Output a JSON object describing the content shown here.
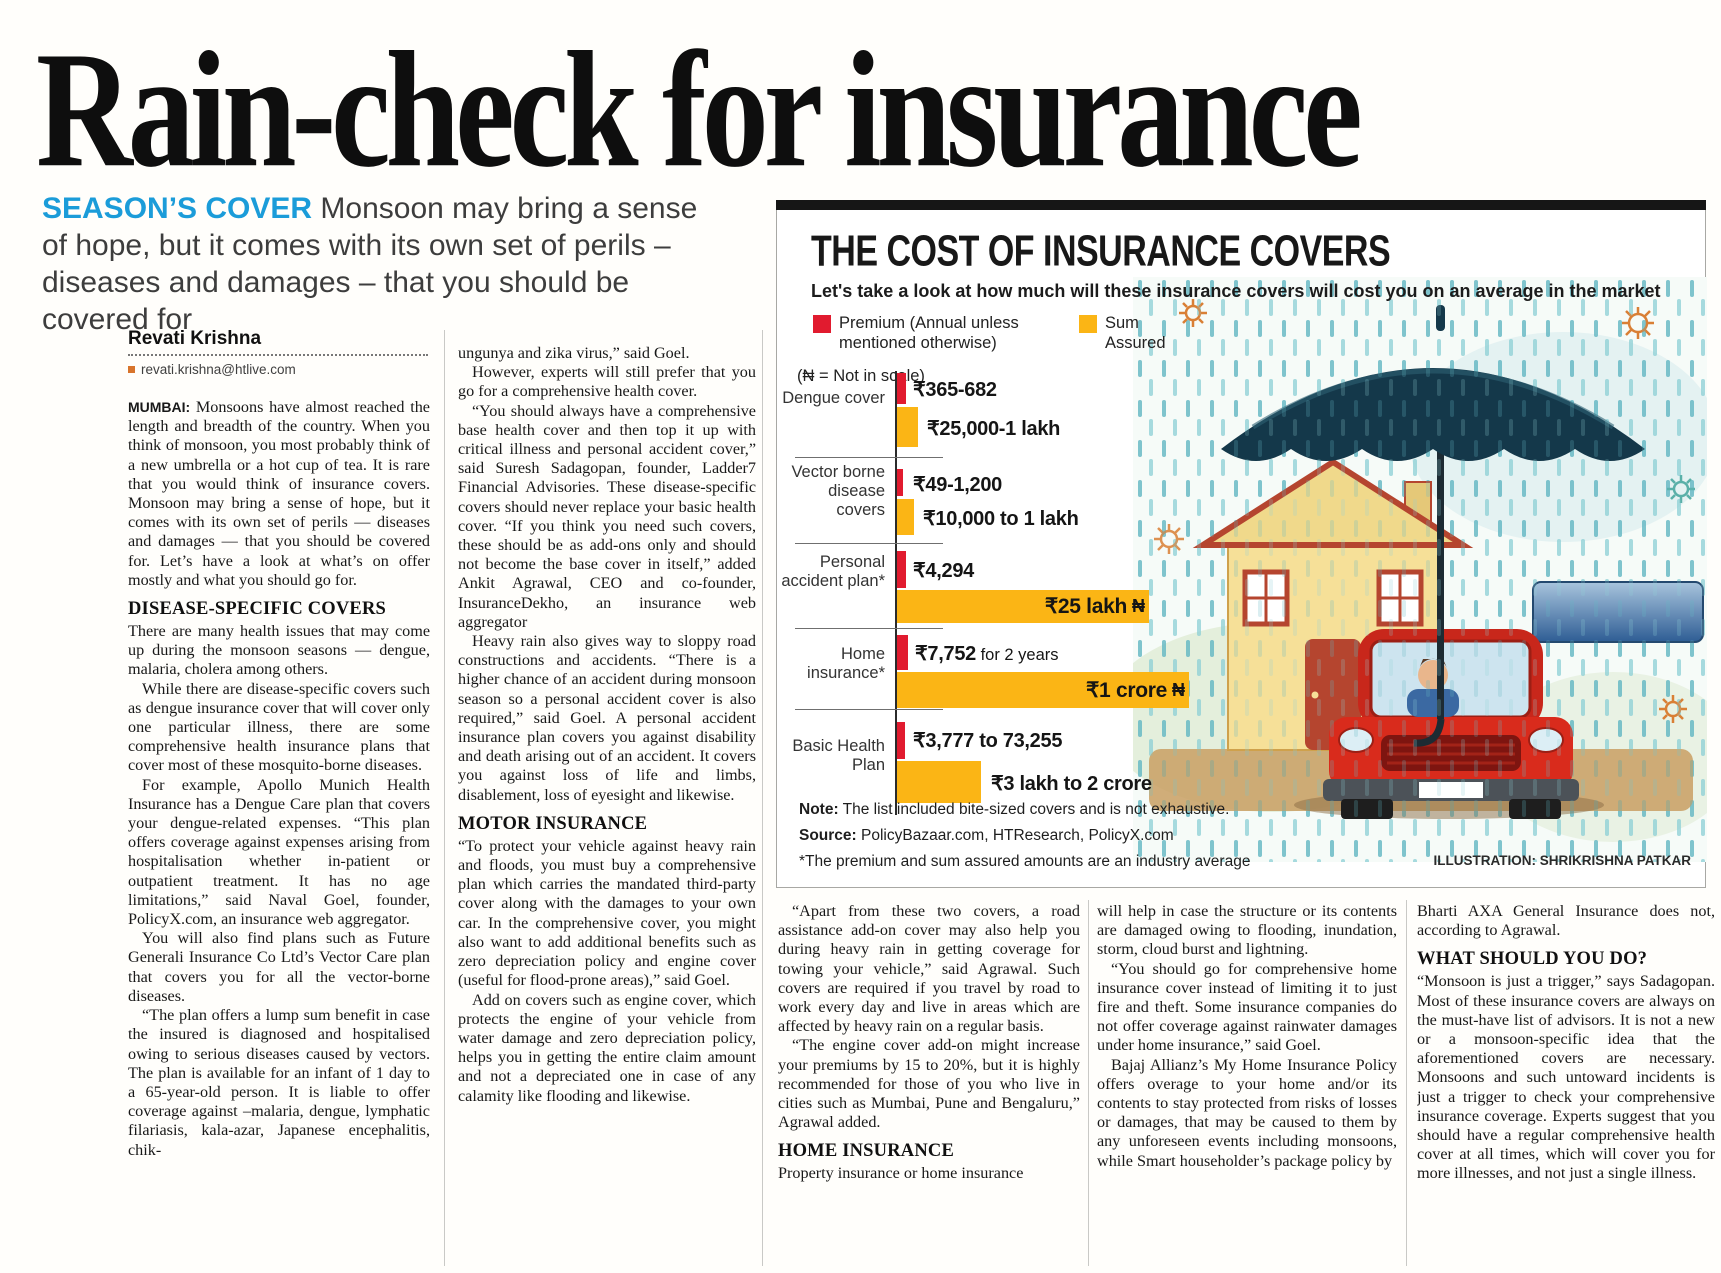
{
  "page": {
    "headline": "Rain-check for insurance"
  },
  "standfirst": {
    "kicker": "SEASON’S COVER",
    "text": " Monsoon may bring a sense of hope, but it comes with its own set of perils – diseases and damages – that you should be covered for"
  },
  "byline": {
    "author": "Revati Krishna",
    "email": "revati.krishna@htlive.com"
  },
  "article": {
    "dateline": "MUMBAI:",
    "col1": {
      "p1": " Monsoons have almost reached the length and breadth of the country. When you think of monsoon, you most probably think of a new umbrella or a hot cup of tea. It is rare that you would think of insurance covers. Monsoon may bring a sense of hope, but it comes with its own set of perils — diseases and damages — that you should be covered for. Let’s have a look at what’s on offer mostly and what you should go for.",
      "h1": "DISEASE-SPECIFIC COVERS",
      "p2": "There are many health issues that may come up during the monsoon seasons — dengue, malaria, cholera among others.",
      "p3": "While there are disease-specific covers such as dengue insurance cover that will cover only one particular illness, there are some comprehensive health insurance plans that cover most of these mosquito-borne diseases.",
      "p4": "For example, Apollo Munich Health Insurance has a Dengue Care plan that covers your dengue-related expenses. “This plan offers coverage against expenses arising from hospitalisation whether in-patient or outpatient treatment. It has no age limitations,” said Naval Goel, founder, PolicyX.com, an insurance web aggregator.",
      "p5": "You will also find plans such as Future Generali Insurance Co Ltd’s Vector Care plan that covers you for all the vector-borne diseases.",
      "p6": "“The plan offers a lump sum benefit in case the insured is diagnosed and hospitalised owing to serious diseases caused by vectors. The plan is available for an infant of 1 day to a 65-year-old person. It is liable to offer coverage against –malaria, dengue, lymphatic filariasis, kala-azar, Japanese encephalitis, chik-"
    },
    "col2": {
      "p1": "ungunya and zika virus,” said Goel.",
      "p2": "However, experts will still prefer that you go for a comprehensive health cover.",
      "p3": "“You should always have a comprehensive base health cover and then top it up with critical illness and personal accident cover,” said Suresh Sadagopan, founder, Ladder7 Financial Advisories. These disease-specific covers should never replace your basic health cover. “If you think you need such covers, these should be as add-ons only and should not become the base cover in itself,” added Ankit Agrawal, CEO and co-founder, InsuranceDekho, an insurance web aggregator",
      "p4": "Heavy rain also gives way to sloppy road constructions and accidents. “There is a higher chance of an accident during monsoon season so a personal accident cover is also required,” said Goel. A personal accident insurance plan covers you against disability and death arising out of an accident. It covers you against loss of life and limbs, disablement, loss of eyesight and likewise.",
      "h1": "MOTOR INSURANCE",
      "p5": "“To protect your vehicle against heavy rain and floods, you must buy a comprehensive plan which carries the mandated third-party cover along with the damages to your own car. In the comprehensive cover, you might also want to add additional benefits such as zero depreciation policy and engine cover (useful for flood-prone areas),” said Goel.",
      "p6": "Add on covers such as engine cover, which protects the engine of your vehicle from water damage and zero depreciation policy, helps you in getting the entire claim amount and not a depreciated one in case of any calamity like flooding and likewise."
    },
    "col3": {
      "p1": "“Apart from these two covers, a road assistance add-on cover may also help you during heavy rain in getting coverage for towing your vehicle,” said Agrawal. Such covers are required if you travel by road to work every day and live in areas which are affected by heavy rain on a regular basis.",
      "p2": "“The engine cover add-on might increase your premiums by 15 to 20%, but it is highly recommended for those of you who live in cities such as Mumbai, Pune and Bengaluru,” Agrawal added.",
      "h1": "HOME INSURANCE",
      "p3": "Property insurance or home insurance"
    },
    "col4": {
      "p1": "will help in case the structure or its contents are damaged owing to flooding, inundation, storm, cloud burst and lightning.",
      "p2": "“You should go for comprehensive home insurance cover instead of limiting it to just fire and theft. Some insurance companies do not offer coverage against rainwater damages under home insurance,” said Goel.",
      "p3": "Bajaj Allianz’s My Home Insurance Policy offers overage to your home and/or its contents to stay protected from risks of losses or damages, that may be caused to them by any unforeseen events including monsoons, while Smart householder’s package policy by"
    },
    "col5": {
      "p1": "Bharti AXA General Insurance does not, according to Agrawal.",
      "h1": "WHAT SHOULD YOU DO?",
      "p2": "“Monsoon is just a trigger,” says Sadagopan. Most of these insurance covers are always on the must-have list of advisors. It is not a new or a monsoon-specific idea that the aforementioned covers are necessary. Monsoons and such untoward incidents is just a trigger to check your comprehensive insurance coverage. Experts suggest that you should have a regular comprehensive health cover at all times, which will cover you for more illnesses, and not just a single illness."
    }
  },
  "chart_data": {
    "type": "bar",
    "orientation": "horizontal",
    "title": "THE COST OF INSURANCE COVERS",
    "subtitle": "Let's take a look at how much will these insurance covers will cost you on an average in the market",
    "legend": [
      {
        "name": "Premium (Annual unless mentioned otherwise)",
        "color": "#e11b2f"
      },
      {
        "name": "Sum Assured",
        "color": "#fbb515"
      }
    ],
    "scale_note": "(₦ = Not in scale)",
    "categories": [
      "Dengue cover",
      "Vector borne disease covers",
      "Personal accident plan*",
      "Home insurance*",
      "Basic Health Plan"
    ],
    "rows": [
      {
        "category": "Dengue cover",
        "premium": "₹365-682",
        "premium_note": "",
        "sum": "₹25,000-1 lakh",
        "premium_w": 9,
        "sum_w": 21,
        "scale_mark": ""
      },
      {
        "category": "Vector borne disease covers",
        "premium": "₹49-1,200",
        "premium_note": "",
        "sum": "₹10,000 to 1 lakh",
        "premium_w": 6,
        "sum_w": 17,
        "scale_mark": ""
      },
      {
        "category": "Personal accident plan*",
        "premium": "₹4,294",
        "premium_note": "",
        "sum": "₹25 lakh",
        "premium_w": 9,
        "sum_w": 252,
        "scale_mark": "₦"
      },
      {
        "category": "Home insurance*",
        "premium": "₹7,752",
        "premium_note": " for 2 years",
        "sum": "₹1 crore",
        "premium_w": 11,
        "sum_w": 292,
        "scale_mark": "₦"
      },
      {
        "category": "Basic Health Plan",
        "premium": "₹3,777 to 73,255",
        "premium_note": "",
        "sum": "₹3 lakh to 2 crore",
        "premium_w": 8,
        "sum_w": 84,
        "scale_mark": ""
      }
    ],
    "note_label": "Note:",
    "note": " The list included bite-sized covers and is not exhaustive.",
    "source_label": "Source:",
    "source": " PolicyBazaar.com, HTResearch, PolicyX.com",
    "footnote": "*The premium and sum assured amounts are an industry average"
  },
  "infographic": {
    "credit": "ILLUSTRATION: SHRIKRISHNA PATKAR"
  }
}
